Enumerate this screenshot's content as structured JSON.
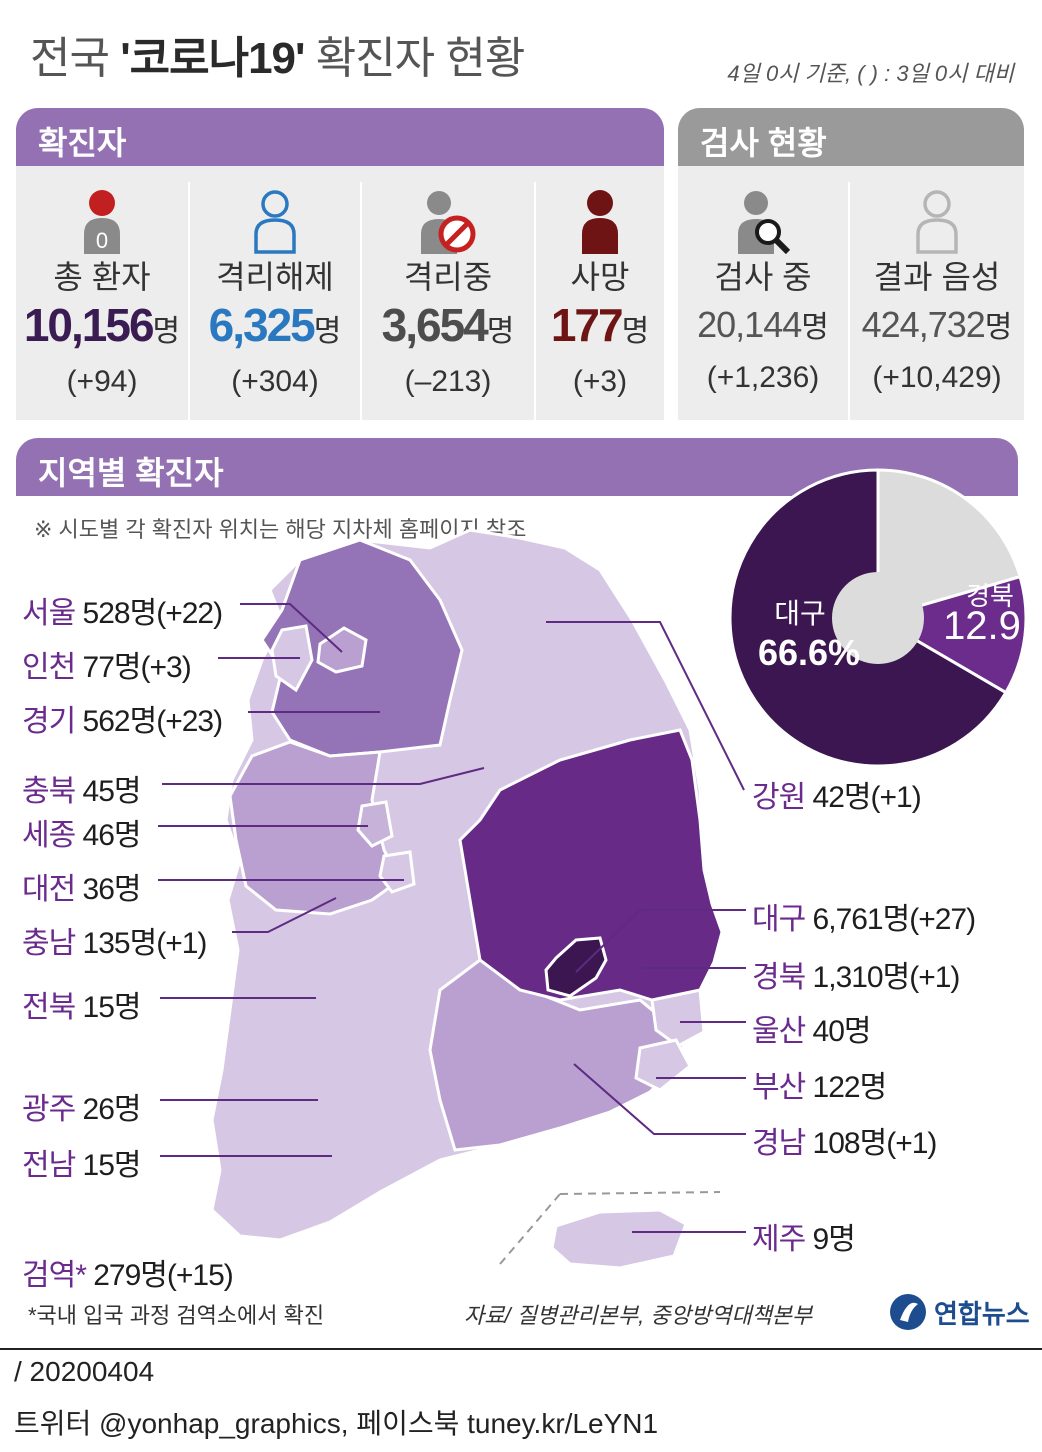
{
  "title": {
    "prefix": "전국 ",
    "emphasis": "'코로나19'",
    "suffix": " 확진자 현황"
  },
  "basis": "4일 0시 기준, ( ) : 3일 0시 대비",
  "confirmed": {
    "header": "확진자",
    "stats": [
      {
        "label": "총 환자",
        "value": "10,156",
        "unit": "명",
        "delta": "(+94)",
        "color": "#3a1c52",
        "icon": "patient-badge-icon",
        "badge": "0"
      },
      {
        "label": "격리해제",
        "value": "6,325",
        "unit": "명",
        "delta": "(+304)",
        "color": "#2a79c0",
        "icon": "person-outline-icon"
      },
      {
        "label": "격리중",
        "value": "3,654",
        "unit": "명",
        "delta": "(–213)",
        "color": "#4d4d4d",
        "icon": "person-prohibited-icon"
      },
      {
        "label": "사망",
        "value": "177",
        "unit": "명",
        "delta": "(+3)",
        "color": "#6e1414",
        "icon": "person-dark-icon"
      }
    ]
  },
  "tests": {
    "header": "검사 현황",
    "stats": [
      {
        "label": "검사 중",
        "value": "20,144",
        "unit": "명",
        "delta": "(+1,236)",
        "color": "#555555",
        "icon": "person-search-icon"
      },
      {
        "label": "결과 음성",
        "value": "424,732",
        "unit": "명",
        "delta": "(+10,429)",
        "color": "#555555",
        "icon": "person-light-outline-icon"
      }
    ]
  },
  "regional": {
    "header": "지역별 확진자",
    "note": "※ 시도별 각 확진자 위치는 해당 지차체 홈페이지 참조",
    "regions": [
      {
        "name": "서울",
        "value": "528명(+22)"
      },
      {
        "name": "인천",
        "value": "77명(+3)"
      },
      {
        "name": "경기",
        "value": "562명(+23)"
      },
      {
        "name": "충북",
        "value": "45명"
      },
      {
        "name": "세종",
        "value": "46명"
      },
      {
        "name": "대전",
        "value": "36명"
      },
      {
        "name": "충남",
        "value": "135명(+1)"
      },
      {
        "name": "전북",
        "value": "15명"
      },
      {
        "name": "광주",
        "value": "26명"
      },
      {
        "name": "전남",
        "value": "15명"
      },
      {
        "name": "검역*",
        "value": "279명(+15)"
      },
      {
        "name": "강원",
        "value": "42명(+1)"
      },
      {
        "name": "대구",
        "value": "6,761명(+27)"
      },
      {
        "name": "경북",
        "value": "1,310명(+1)"
      },
      {
        "name": "울산",
        "value": "40명"
      },
      {
        "name": "부산",
        "value": "122명"
      },
      {
        "name": "경남",
        "value": "108명(+1)"
      },
      {
        "name": "제주",
        "value": "9명"
      }
    ]
  },
  "chart_data": {
    "type": "pie",
    "labels": [
      "대구",
      "경북",
      ""
    ],
    "values": [
      66.6,
      12.9,
      20.5
    ],
    "display": [
      "66.6%",
      "12.9",
      ""
    ],
    "colors": [
      "#3b1650",
      "#6b2c8c",
      "#dcdcdc"
    ],
    "donut": true
  },
  "colors": {
    "accent": "#9471b3",
    "region_label": "#6a2a8e",
    "map_light": "#d6c8e4",
    "map_mid": "#b9a0d0",
    "map_capital": "#9474b6",
    "map_gyeongbuk": "#672a86",
    "map_daegu": "#3b1650"
  },
  "footer": {
    "footnote": "*국내 입국 과정 검역소에서 확진",
    "source": "자료/ 질병관리본부, 중앙방역대책본부",
    "logo": "연합뉴스",
    "date": "/ 20200404",
    "social": "트위터 @yonhap_graphics, 페이스북 tuney.kr/LeYN1"
  }
}
